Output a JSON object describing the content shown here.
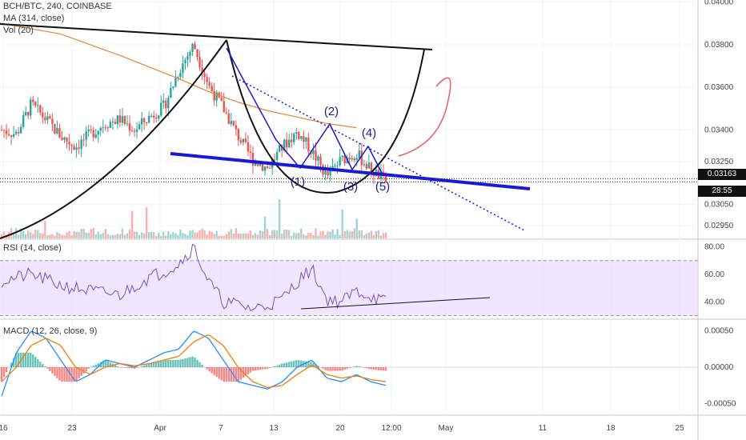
{
  "legend": {
    "symbol": "BCH/BTC, 240, COINBASE",
    "ma": "MA (314, close)",
    "vol": "Vol (20)",
    "rsi": "RSI (14, close)",
    "macd": "MACD (12, 26, close, 9)"
  },
  "price_label": "0.03163",
  "countdown_label": "28:55",
  "colors": {
    "up": "#26a69a",
    "down": "#ef5350",
    "ma": "#f08030",
    "rsi": "#7b4fc8",
    "macd": "#1e90ff",
    "signal": "#f57c00",
    "drawing_blue": "#1a1ad6",
    "arrow": "#e06060"
  },
  "chart_data": [
    {
      "type": "line",
      "title": "BCH/BTC, 240, COINBASE",
      "x_tick_labels": [
        "16",
        "23",
        "Apr",
        "7",
        "13",
        "20",
        "12:00",
        "May",
        "11",
        "18",
        "25"
      ],
      "y_tick_labels": [
        "0.04000",
        "0.03800",
        "0.03600",
        "0.03400",
        "0.03250",
        "0.03050",
        "0.02950"
      ],
      "ylim": [
        0.0289,
        0.0401
      ],
      "series": [
        {
          "name": "BCH/BTC",
          "x": [
            0,
            5,
            10,
            15,
            20,
            25,
            30,
            35,
            40,
            45,
            50,
            55,
            60,
            65,
            70,
            75,
            80,
            85,
            90,
            95,
            100,
            105,
            110,
            115,
            120,
            125,
            130
          ],
          "y": [
            0.034,
            0.0338,
            0.0352,
            0.0345,
            0.0337,
            0.0332,
            0.0338,
            0.0343,
            0.0345,
            0.034,
            0.0346,
            0.0351,
            0.0368,
            0.038,
            0.0361,
            0.035,
            0.0337,
            0.0326,
            0.0322,
            0.0332,
            0.0339,
            0.033,
            0.0318,
            0.0326,
            0.0329,
            0.0321,
            0.0316
          ]
        },
        {
          "name": "MA (314, close)",
          "x": [
            0,
            20,
            40,
            60,
            70,
            80,
            90,
            100,
            110,
            120
          ],
          "y": [
            0.039,
            0.0385,
            0.0375,
            0.0364,
            0.0358,
            0.0353,
            0.0349,
            0.0346,
            0.0343,
            0.0341
          ]
        }
      ],
      "annotations": [
        "(1)",
        "(2)",
        "(3)",
        "(4)",
        "(5)"
      ]
    },
    {
      "type": "bar",
      "title": "Vol (20)",
      "note": "volume bars, unitless"
    },
    {
      "type": "line",
      "title": "RSI (14, close)",
      "y_tick_labels": [
        "80.00",
        "60.00",
        "40.00"
      ],
      "ylim": [
        28,
        85
      ],
      "band": [
        30,
        70
      ],
      "series": [
        {
          "name": "RSI",
          "x": [
            0,
            10,
            20,
            30,
            40,
            50,
            55,
            60,
            65,
            70,
            75,
            80,
            85,
            90,
            95,
            100,
            105,
            110,
            115,
            120,
            125,
            130
          ],
          "y": [
            55,
            60,
            52,
            48,
            45,
            58,
            62,
            68,
            80,
            55,
            40,
            38,
            35,
            38,
            42,
            55,
            64,
            42,
            40,
            48,
            44,
            40
          ]
        }
      ]
    },
    {
      "type": "line",
      "title": "MACD (12, 26, close, 9)",
      "y_tick_labels": [
        "0.00050",
        "0.00000",
        "-0.00050"
      ],
      "ylim": [
        -0.00065,
        0.00065
      ],
      "series": [
        {
          "name": "MACD",
          "x": [
            0,
            5,
            10,
            15,
            20,
            25,
            30,
            35,
            40,
            45,
            50,
            55,
            60,
            65,
            70,
            75,
            80,
            85,
            90,
            95,
            100,
            105,
            110,
            115,
            120,
            125,
            130
          ],
          "y": [
            -0.0004,
            0.0002,
            0.0005,
            0.0004,
            0.0001,
            -0.0002,
            -0.0001,
            0.0001,
            5e-05,
            0.0,
            0.0001,
            0.0002,
            0.00025,
            0.0005,
            0.0004,
            0.0001,
            -0.0002,
            -0.00025,
            -0.0003,
            -0.0002,
            0.0,
            0.0001,
            -0.00015,
            -0.0002,
            -0.0001,
            -0.0002,
            -0.00025
          ]
        },
        {
          "name": "Signal",
          "x": [
            0,
            5,
            10,
            15,
            20,
            25,
            30,
            35,
            40,
            45,
            50,
            55,
            60,
            65,
            70,
            75,
            80,
            85,
            90,
            95,
            100,
            105,
            110,
            115,
            120,
            125,
            130
          ],
          "y": [
            -0.0002,
            0.0,
            0.0003,
            0.0004,
            0.0003,
            0.0,
            -0.0001,
            0.0,
            5e-05,
            2e-05,
            5e-05,
            0.0001,
            0.00015,
            0.00035,
            0.00045,
            0.0003,
            0.0,
            -0.0002,
            -0.00028,
            -0.00025,
            -0.0001,
            3e-05,
            -0.0001,
            -0.00015,
            -0.00012,
            -0.00017,
            -0.0002
          ]
        }
      ]
    }
  ]
}
